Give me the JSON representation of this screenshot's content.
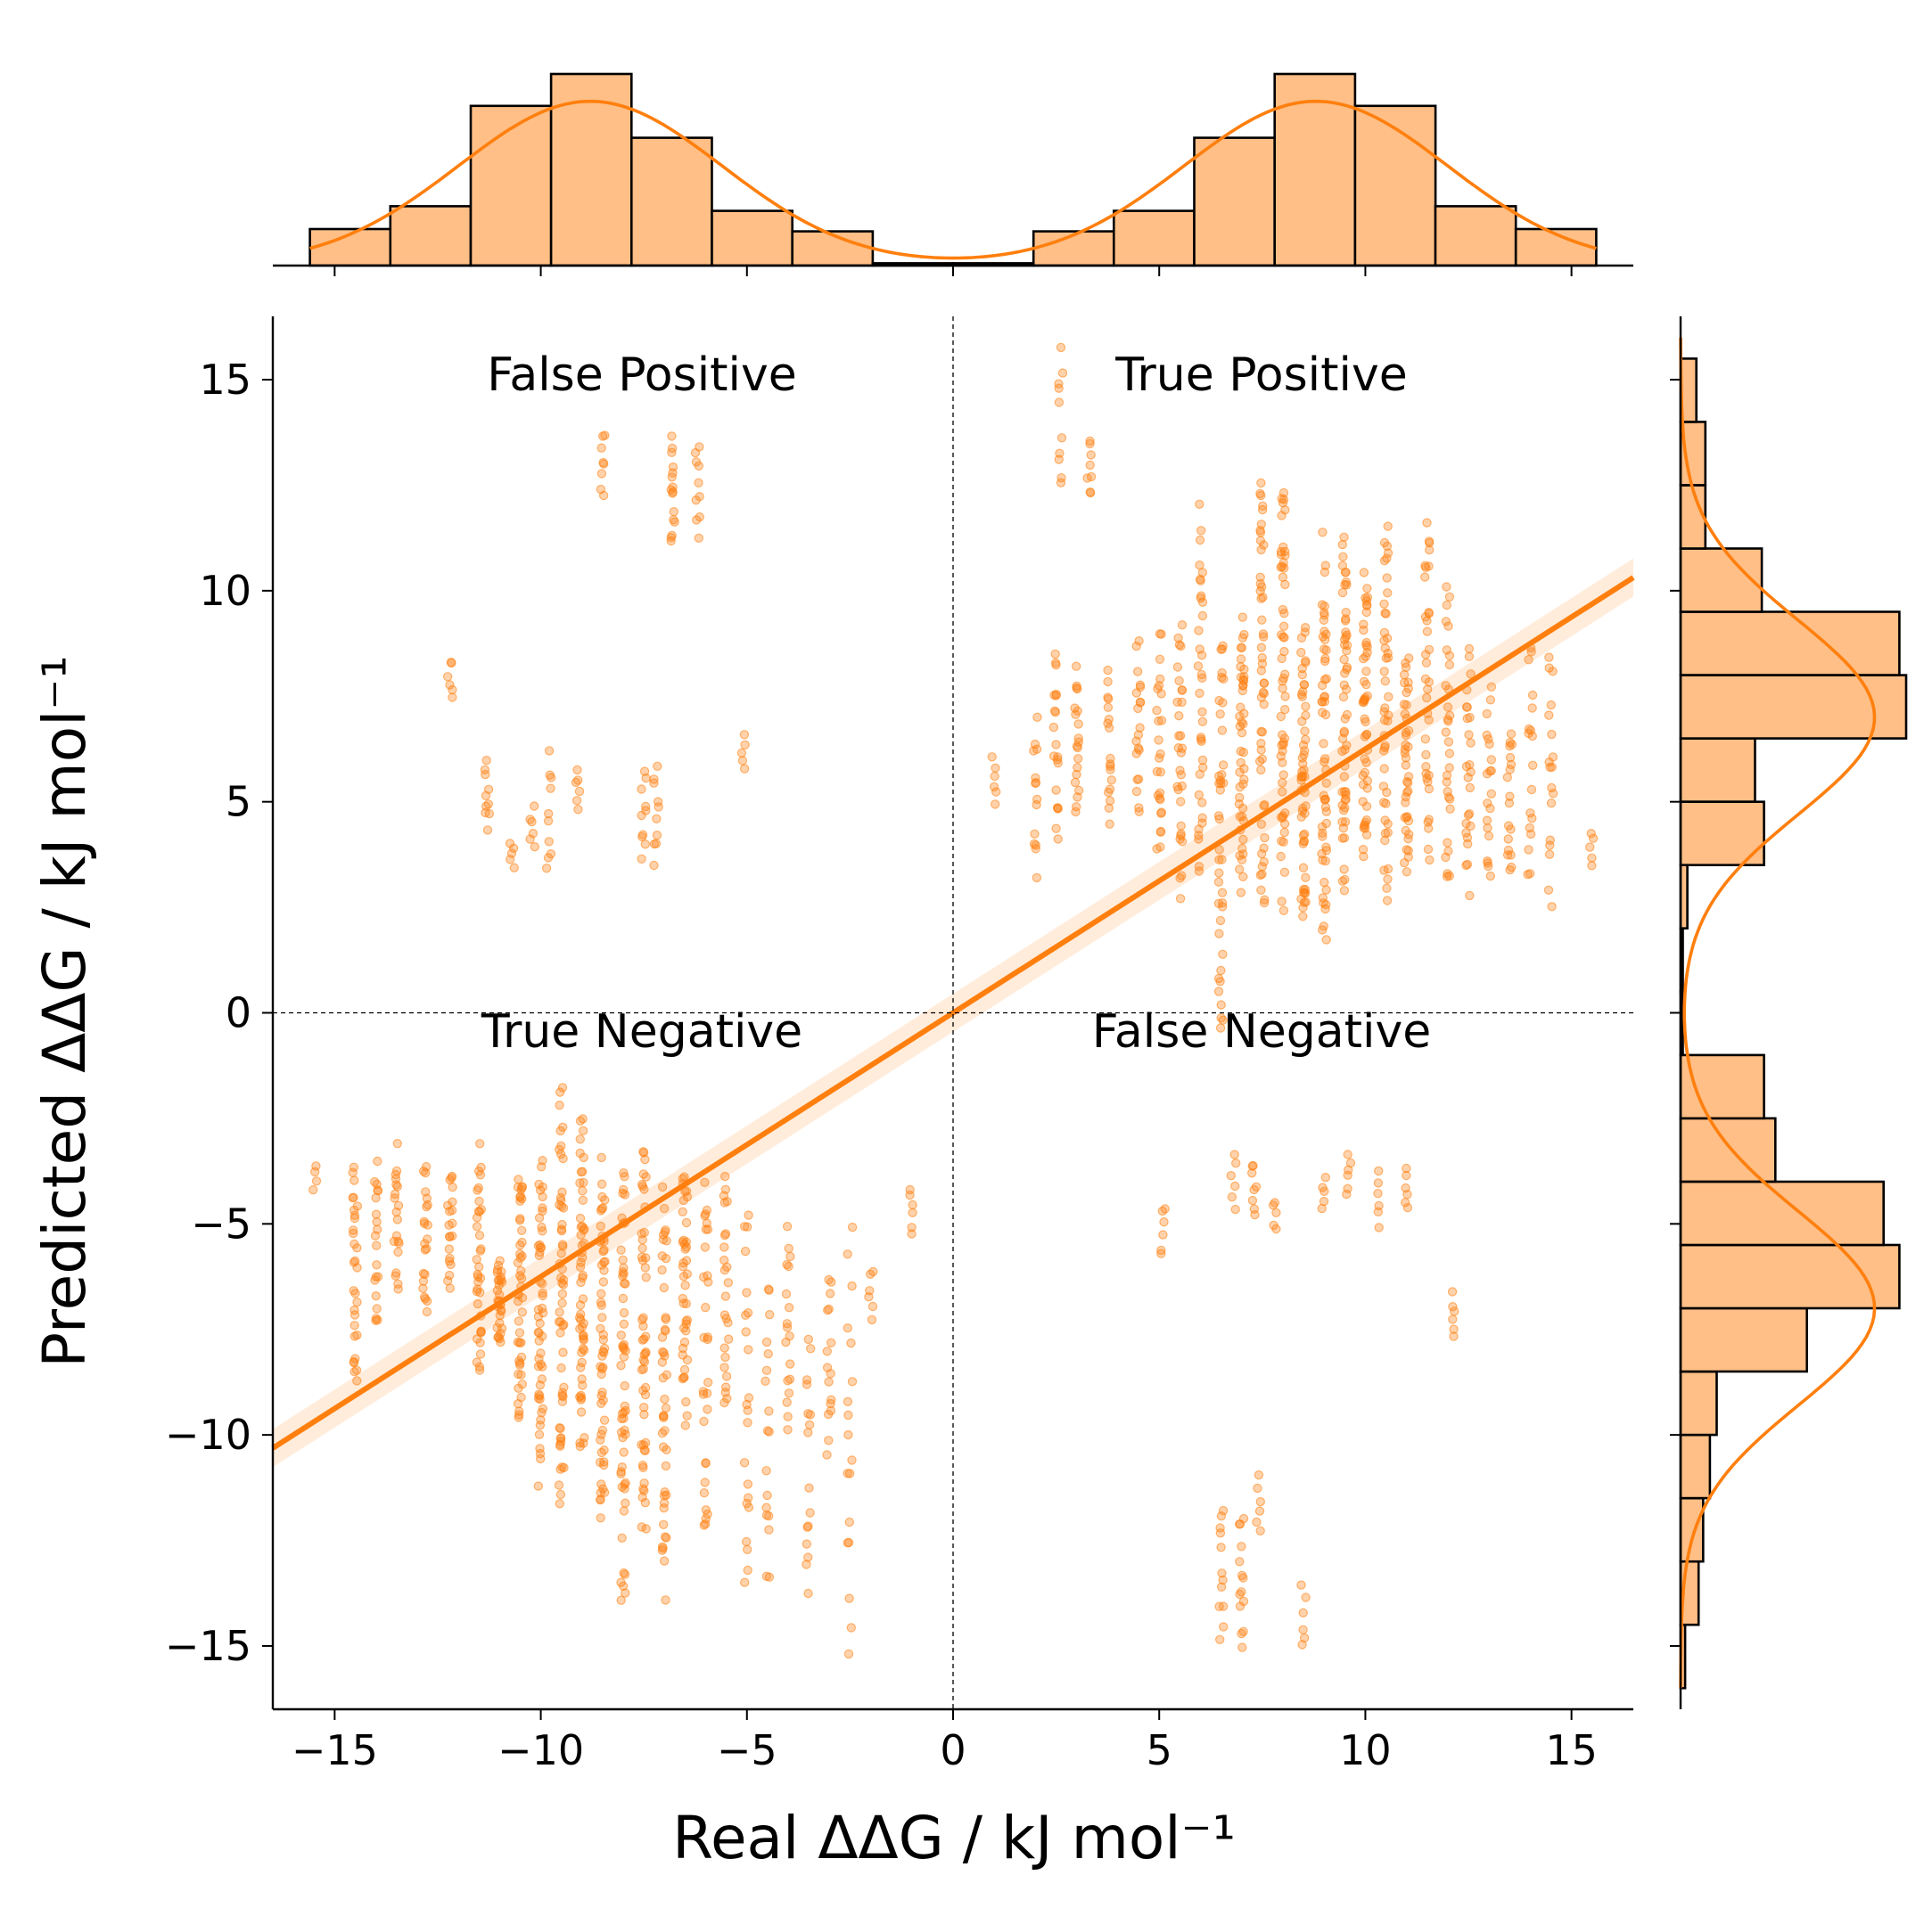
{
  "chart_data": {
    "type": "scatter",
    "xlabel": "Real ΔΔG / kJ mol⁻¹",
    "ylabel": "Predicted ΔΔG / kJ mol⁻¹",
    "xlim": [
      -16.5,
      16.5
    ],
    "ylim": [
      -16.5,
      16.5
    ],
    "xticks": [
      -15,
      -10,
      -5,
      0,
      5,
      10,
      15
    ],
    "yticks": [
      -15,
      -10,
      -5,
      0,
      5,
      10,
      15
    ],
    "xtick_labels": [
      "−15",
      "−10",
      "−5",
      "0",
      "5",
      "10",
      "15"
    ],
    "ytick_labels": [
      "−15",
      "−10",
      "−5",
      "0",
      "5",
      "10",
      "15"
    ],
    "grid": false,
    "color": "#ff7f0e",
    "bar_fill": "#ffbf86",
    "reference_lines": {
      "x": 0,
      "y": 0,
      "style": "dashed"
    },
    "quadrant_labels": {
      "top_left": "False Positive",
      "top_right": "True Positive",
      "bottom_left": "True Negative",
      "bottom_right": "False Negative"
    },
    "regression": {
      "slope": 0.625,
      "intercept": 0.0,
      "x_range": [
        -16.5,
        16.5
      ]
    },
    "clusters": [
      {
        "x": -15.5,
        "y_range": [
          -4.4,
          -3.4
        ],
        "n": 4
      },
      {
        "x": -14.5,
        "y_range": [
          -9.5,
          -3.0
        ],
        "n": 30
      },
      {
        "x": -14.0,
        "y_range": [
          -8.0,
          -3.0
        ],
        "n": 20
      },
      {
        "x": -13.5,
        "y_range": [
          -6.8,
          -3.0
        ],
        "n": 20
      },
      {
        "x": -12.8,
        "y_range": [
          -7.5,
          -3.2
        ],
        "n": 22
      },
      {
        "x": -12.2,
        "y_range": [
          -6.8,
          -3.5
        ],
        "n": 20
      },
      {
        "x": -11.5,
        "y_range": [
          -9.0,
          -3.0
        ],
        "n": 35
      },
      {
        "x": -11.0,
        "y_range": [
          -8.0,
          -5.7
        ],
        "n": 30
      },
      {
        "x": -10.5,
        "y_range": [
          -10.0,
          -3.2
        ],
        "n": 45
      },
      {
        "x": -10.0,
        "y_range": [
          -11.5,
          -3.0
        ],
        "n": 50
      },
      {
        "x": -9.5,
        "y_range": [
          -12.5,
          -1.5
        ],
        "n": 55
      },
      {
        "x": -9.0,
        "y_range": [
          -11.0,
          -2.0
        ],
        "n": 55
      },
      {
        "x": -8.5,
        "y_range": [
          -12.5,
          -3.0
        ],
        "n": 55
      },
      {
        "x": -8.0,
        "y_range": [
          -14.5,
          -3.0
        ],
        "n": 55
      },
      {
        "x": -7.5,
        "y_range": [
          -13.0,
          -2.5
        ],
        "n": 50
      },
      {
        "x": -7.0,
        "y_range": [
          -14.5,
          -3.5
        ],
        "n": 45
      },
      {
        "x": -6.5,
        "y_range": [
          -10.0,
          -3.0
        ],
        "n": 40
      },
      {
        "x": -6.0,
        "y_range": [
          -13.5,
          -3.0
        ],
        "n": 30
      },
      {
        "x": -5.5,
        "y_range": [
          -10.0,
          -3.5
        ],
        "n": 25
      },
      {
        "x": -5.0,
        "y_range": [
          -15.0,
          -4.0
        ],
        "n": 22
      },
      {
        "x": -4.5,
        "y_range": [
          -14.0,
          -6.0
        ],
        "n": 18
      },
      {
        "x": -4.0,
        "y_range": [
          -10.5,
          -4.5
        ],
        "n": 18
      },
      {
        "x": -3.5,
        "y_range": [
          -15.0,
          -6.5
        ],
        "n": 16
      },
      {
        "x": -3.0,
        "y_range": [
          -11.0,
          -5.5
        ],
        "n": 16
      },
      {
        "x": -2.5,
        "y_range": [
          -16.0,
          -4.5
        ],
        "n": 18
      },
      {
        "x": -2.0,
        "y_range": [
          -7.5,
          -5.8
        ],
        "n": 6
      },
      {
        "x": -1.0,
        "y_range": [
          -5.5,
          -3.9
        ],
        "n": 6
      },
      {
        "x": -12.2,
        "y_range": [
          7.2,
          8.6
        ],
        "n": 6
      },
      {
        "x": -11.3,
        "y_range": [
          4.2,
          6.1
        ],
        "n": 10
      },
      {
        "x": -10.7,
        "y_range": [
          3.3,
          4.2
        ],
        "n": 5
      },
      {
        "x": -10.2,
        "y_range": [
          3.8,
          5.0
        ],
        "n": 6
      },
      {
        "x": -9.8,
        "y_range": [
          3.0,
          6.5
        ],
        "n": 10
      },
      {
        "x": -9.1,
        "y_range": [
          4.5,
          6.0
        ],
        "n": 6
      },
      {
        "x": -8.5,
        "y_range": [
          12.0,
          14.0
        ],
        "n": 8
      },
      {
        "x": -7.5,
        "y_range": [
          3.4,
          6.0
        ],
        "n": 10
      },
      {
        "x": -7.2,
        "y_range": [
          3.2,
          6.2
        ],
        "n": 10
      },
      {
        "x": -6.8,
        "y_range": [
          10.8,
          14.0
        ],
        "n": 16
      },
      {
        "x": -6.2,
        "y_range": [
          11.0,
          13.8
        ],
        "n": 10
      },
      {
        "x": -5.1,
        "y_range": [
          5.6,
          6.7
        ],
        "n": 5
      },
      {
        "x": 1.0,
        "y_range": [
          4.8,
          6.2
        ],
        "n": 6
      },
      {
        "x": 2.0,
        "y_range": [
          3.0,
          7.2
        ],
        "n": 14
      },
      {
        "x": 2.5,
        "y_range": [
          3.8,
          9.0
        ],
        "n": 20
      },
      {
        "x": 2.6,
        "y_range": [
          12.0,
          16.0
        ],
        "n": 10
      },
      {
        "x": 3.0,
        "y_range": [
          4.5,
          8.5
        ],
        "n": 20
      },
      {
        "x": 3.3,
        "y_range": [
          12.0,
          13.8
        ],
        "n": 8
      },
      {
        "x": 3.8,
        "y_range": [
          4.0,
          8.5
        ],
        "n": 18
      },
      {
        "x": 4.5,
        "y_range": [
          4.5,
          9.0
        ],
        "n": 20
      },
      {
        "x": 5.0,
        "y_range": [
          3.0,
          9.5
        ],
        "n": 25
      },
      {
        "x": 5.5,
        "y_range": [
          2.5,
          9.8
        ],
        "n": 30
      },
      {
        "x": 6.0,
        "y_range": [
          2.5,
          12.5
        ],
        "n": 35
      },
      {
        "x": 6.5,
        "y_range": [
          -1.3,
          9.5
        ],
        "n": 40
      },
      {
        "x": 7.0,
        "y_range": [
          2.5,
          10.0
        ],
        "n": 45
      },
      {
        "x": 7.5,
        "y_range": [
          1.5,
          13.5
        ],
        "n": 50
      },
      {
        "x": 8.0,
        "y_range": [
          2.0,
          13.5
        ],
        "n": 55
      },
      {
        "x": 8.5,
        "y_range": [
          1.5,
          9.5
        ],
        "n": 55
      },
      {
        "x": 9.0,
        "y_range": [
          0.8,
          11.5
        ],
        "n": 55
      },
      {
        "x": 9.5,
        "y_range": [
          2.5,
          12.0
        ],
        "n": 55
      },
      {
        "x": 10.0,
        "y_range": [
          3.0,
          11.0
        ],
        "n": 50
      },
      {
        "x": 10.5,
        "y_range": [
          2.5,
          12.0
        ],
        "n": 45
      },
      {
        "x": 11.0,
        "y_range": [
          3.0,
          9.0
        ],
        "n": 40
      },
      {
        "x": 11.5,
        "y_range": [
          3.0,
          12.5
        ],
        "n": 35
      },
      {
        "x": 12.0,
        "y_range": [
          2.5,
          10.5
        ],
        "n": 30
      },
      {
        "x": 12.5,
        "y_range": [
          2.5,
          9.0
        ],
        "n": 25
      },
      {
        "x": 13.0,
        "y_range": [
          2.5,
          8.0
        ],
        "n": 20
      },
      {
        "x": 13.5,
        "y_range": [
          3.0,
          7.0
        ],
        "n": 18
      },
      {
        "x": 14.0,
        "y_range": [
          2.5,
          9.5
        ],
        "n": 18
      },
      {
        "x": 14.5,
        "y_range": [
          2.3,
          9.0
        ],
        "n": 18
      },
      {
        "x": 15.5,
        "y_range": [
          3.2,
          4.5
        ],
        "n": 5
      },
      {
        "x": 5.1,
        "y_range": [
          -6.0,
          -4.3
        ],
        "n": 6
      },
      {
        "x": 6.8,
        "y_range": [
          -4.8,
          -3.2
        ],
        "n": 6
      },
      {
        "x": 7.3,
        "y_range": [
          -5.0,
          -3.3
        ],
        "n": 8
      },
      {
        "x": 7.8,
        "y_range": [
          -5.3,
          -4.3
        ],
        "n": 5
      },
      {
        "x": 9.0,
        "y_range": [
          -4.8,
          -3.8
        ],
        "n": 5
      },
      {
        "x": 9.6,
        "y_range": [
          -4.5,
          -3.2
        ],
        "n": 6
      },
      {
        "x": 10.3,
        "y_range": [
          -5.3,
          -3.6
        ],
        "n": 6
      },
      {
        "x": 11.0,
        "y_range": [
          -4.8,
          -3.5
        ],
        "n": 6
      },
      {
        "x": 12.1,
        "y_range": [
          -7.8,
          -6.5
        ],
        "n": 6
      },
      {
        "x": 6.5,
        "y_range": [
          -15.3,
          -11.2
        ],
        "n": 12
      },
      {
        "x": 7.0,
        "y_range": [
          -15.3,
          -11.5
        ],
        "n": 14
      },
      {
        "x": 7.4,
        "y_range": [
          -12.5,
          -10.7
        ],
        "n": 6
      },
      {
        "x": 8.5,
        "y_range": [
          -15.3,
          -13.4
        ],
        "n": 6
      }
    ],
    "top_histogram": {
      "bin_edges": [
        -15.6,
        -13.65,
        -11.7,
        -9.75,
        -7.8,
        -5.85,
        -3.9,
        -1.95,
        0.0,
        1.95,
        3.9,
        5.85,
        7.8,
        9.75,
        11.7,
        13.65,
        15.6
      ],
      "counts": [
        0.16,
        0.26,
        0.7,
        0.84,
        0.56,
        0.24,
        0.15,
        0.01,
        0.01,
        0.15,
        0.24,
        0.56,
        0.84,
        0.7,
        0.26,
        0.16
      ]
    },
    "right_histogram": {
      "bin_edges": [
        -16.0,
        -14.5,
        -13.0,
        -11.5,
        -10.0,
        -8.5,
        -7.0,
        -5.5,
        -4.0,
        -2.5,
        -1.0,
        0.5,
        2.0,
        3.5,
        5.0,
        6.5,
        8.0,
        9.5,
        11.0,
        12.5,
        14.0,
        15.5
      ],
      "counts": [
        0.02,
        0.08,
        0.1,
        0.13,
        0.16,
        0.56,
        0.97,
        0.9,
        0.42,
        0.37,
        0.01,
        0.01,
        0.03,
        0.37,
        0.33,
        1.0,
        0.97,
        0.36,
        0.11,
        0.11,
        0.07
      ]
    }
  }
}
